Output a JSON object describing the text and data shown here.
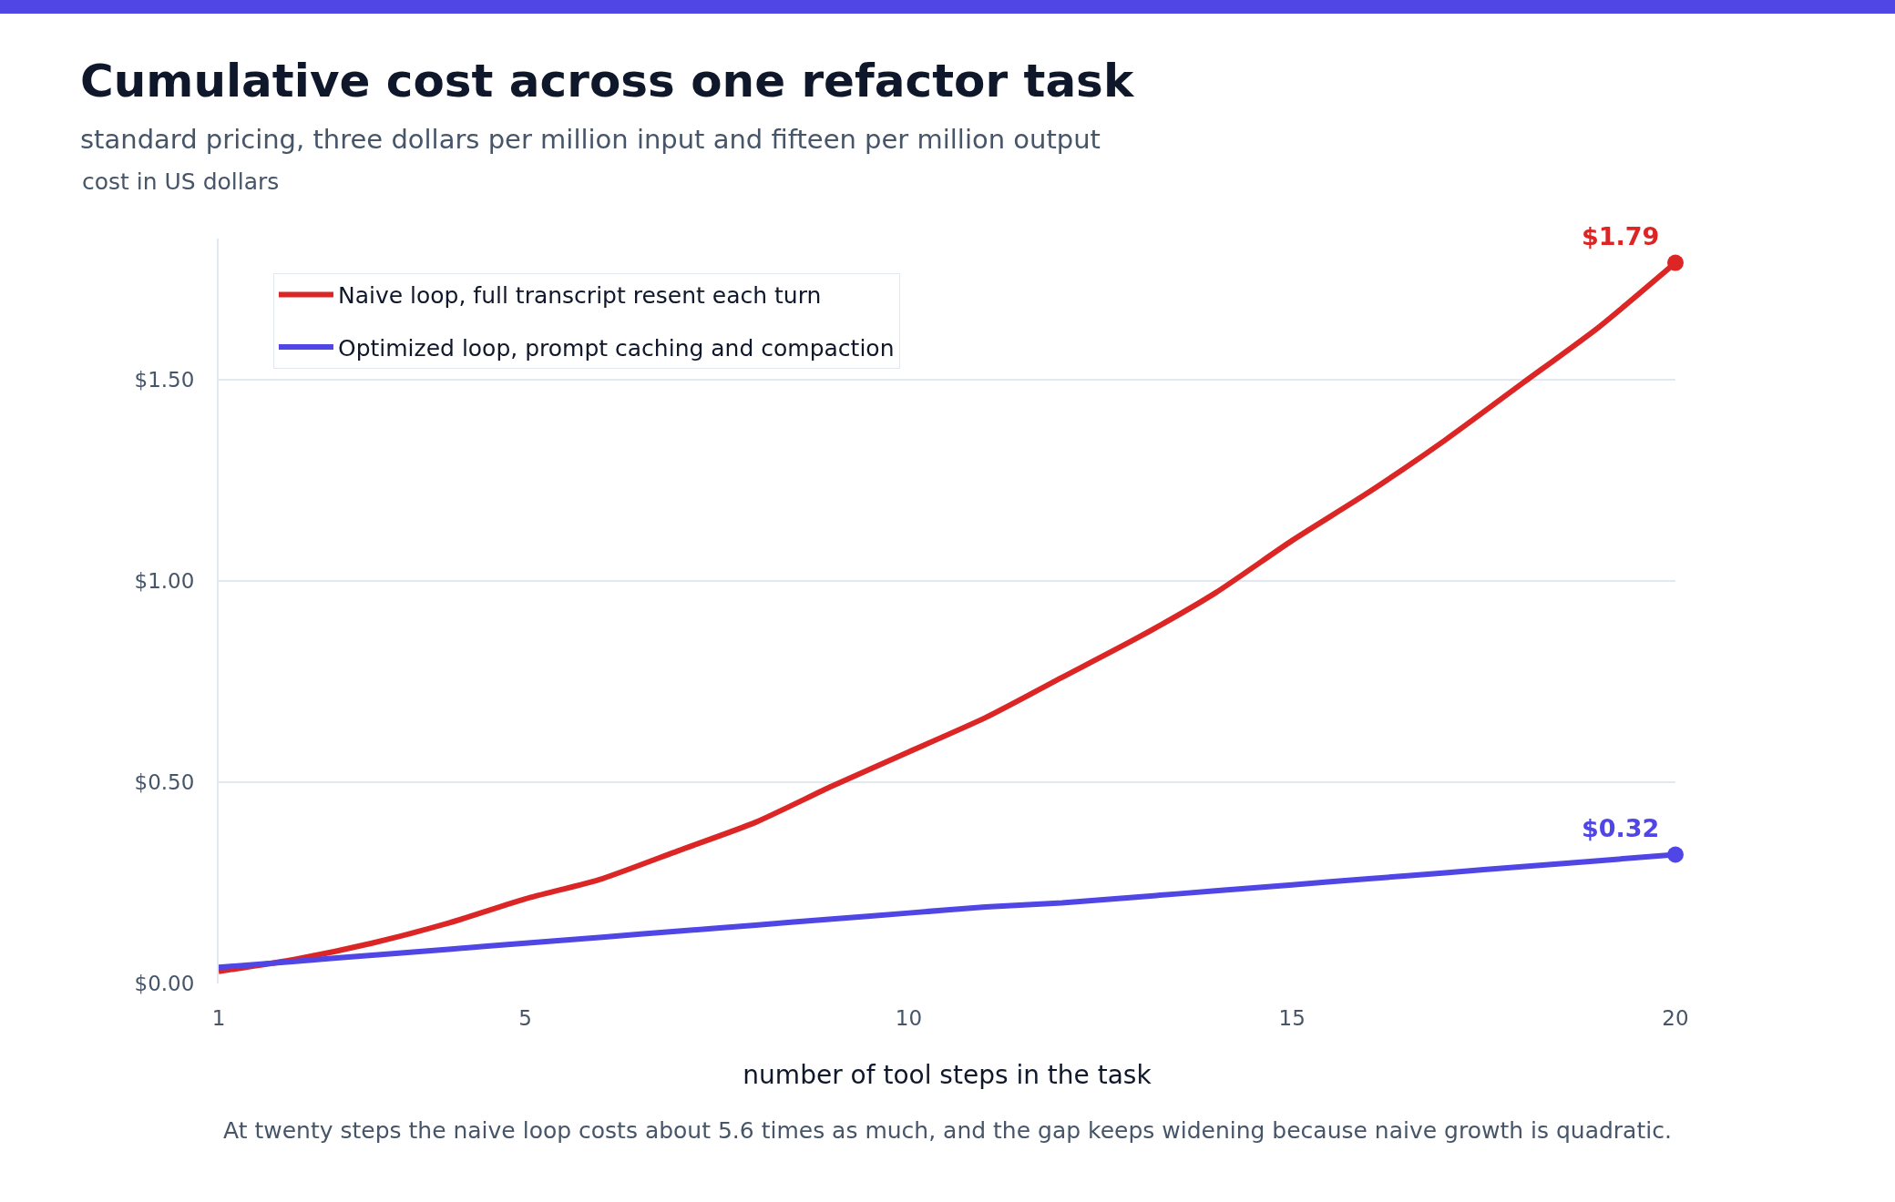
{
  "chart_data": {
    "type": "line",
    "title": "Cumulative cost across one refactor task",
    "subtitle": "standard pricing, three dollars per million input and fifteen per million output",
    "xlabel": "number of tool steps in the task",
    "x": [
      1,
      2,
      3,
      4,
      5,
      6,
      7,
      8,
      9,
      10,
      11,
      12,
      13,
      14,
      15,
      16,
      17,
      18,
      19,
      20
    ],
    "series": [
      {
        "name": "Naive loop, full transcript resent each turn",
        "color": "#dc2626",
        "values": [
          0.03,
          0.06,
          0.1,
          0.15,
          0.21,
          0.26,
          0.33,
          0.4,
          0.49,
          0.575,
          0.66,
          0.76,
          0.86,
          0.97,
          1.1,
          1.22,
          1.35,
          1.49,
          1.63,
          1.79
        ],
        "value_labels": [
          null,
          null,
          null,
          null,
          null,
          null,
          null,
          null,
          null,
          null,
          null,
          null,
          null,
          null,
          null,
          null,
          null,
          null,
          null,
          "$1.79"
        ]
      },
      {
        "name": "Optimized loop, prompt caching and compaction",
        "color": "#4f46e5",
        "values": [
          0.04,
          0.055,
          0.07,
          0.085,
          0.1,
          0.115,
          0.13,
          0.145,
          0.16,
          0.175,
          0.19,
          0.2,
          0.215,
          0.23,
          0.245,
          0.26,
          0.275,
          0.29,
          0.305,
          0.32
        ],
        "value_labels": [
          null,
          null,
          null,
          null,
          null,
          null,
          null,
          null,
          null,
          null,
          null,
          null,
          null,
          null,
          null,
          null,
          null,
          null,
          null,
          "$0.32"
        ]
      }
    ],
    "xlim": [
      1,
      20
    ],
    "xticks": [
      1,
      5,
      10,
      15,
      20
    ],
    "ylim": [
      0,
      1.85
    ],
    "yticks": [
      {
        "value": 0,
        "label": "$0.00"
      },
      {
        "value": 0.5,
        "label": "$0.50"
      },
      {
        "value": 1,
        "label": "$1.00"
      },
      {
        "value": 1.5,
        "label": "$1.50"
      }
    ],
    "grid": "y",
    "legend": "top left",
    "annotations": [
      "cost in US dollars",
      "At twenty steps the naive loop costs about 5.6 times as much, and the gap keeps widening because naive growth is quadratic."
    ]
  }
}
